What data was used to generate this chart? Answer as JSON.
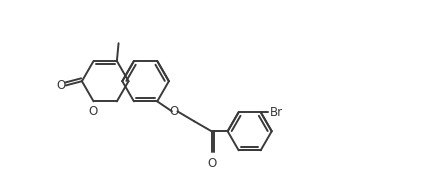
{
  "background_color": "#ffffff",
  "line_color": "#3a3a3a",
  "line_width": 1.4,
  "figsize": [
    4.35,
    1.7
  ],
  "dpi": 100,
  "font_size": 8.5,
  "hex_r": 0.55,
  "br_r": 0.52,
  "xlim": [
    -0.5,
    9.5
  ],
  "ylim": [
    0.3,
    4.1
  ]
}
